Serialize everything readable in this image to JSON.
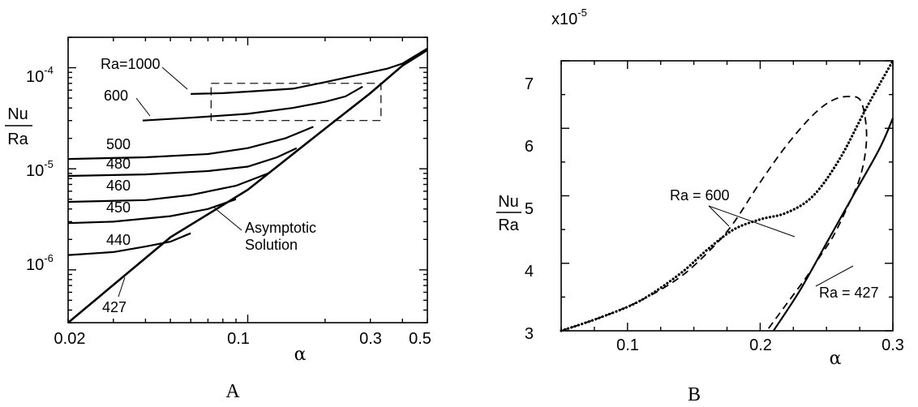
{
  "panels": {
    "A": {
      "label": "A"
    },
    "B": {
      "label": "B"
    }
  },
  "chart_data": [
    {
      "type": "line",
      "panel": "A",
      "xscale": "log",
      "yscale": "log",
      "xlim": [
        0.02,
        0.5
      ],
      "ylim": [
        3e-07,
        0.0002
      ],
      "xlabel": "α",
      "ylabel": {
        "top": "Nu",
        "bottom": "Ra"
      },
      "xticks": [
        {
          "value": 0.02,
          "label": "0.02"
        },
        {
          "value": 0.1,
          "label": "0.1"
        },
        {
          "value": 0.3,
          "label": "0.3"
        },
        {
          "value": 0.5,
          "label": "0.5"
        }
      ],
      "yticks": [
        {
          "value": 1e-06,
          "base": "10",
          "exp": "-6"
        },
        {
          "value": 1e-05,
          "base": "10",
          "exp": "-5"
        },
        {
          "value": 0.0001,
          "base": "10",
          "exp": "-4"
        }
      ],
      "series": [
        {
          "name": "427",
          "style": "asymptotic",
          "x": [
            0.02,
            0.05,
            0.1,
            0.2,
            0.3,
            0.4,
            0.5
          ],
          "y": [
            3e-07,
            2.1e-06,
            6.2e-06,
            2.5e-05,
            5.6e-05,
            0.000105,
            0.00015
          ]
        },
        {
          "name": "440",
          "x": [
            0.02,
            0.03,
            0.04,
            0.05,
            0.06
          ],
          "y": [
            1.4e-06,
            1.5e-06,
            1.7e-06,
            1.9e-06,
            2.3e-06
          ]
        },
        {
          "name": "450",
          "x": [
            0.02,
            0.03,
            0.05,
            0.07,
            0.09
          ],
          "y": [
            2.9e-06,
            3e-06,
            3.4e-06,
            4e-06,
            5e-06
          ]
        },
        {
          "name": "460",
          "x": [
            0.02,
            0.04,
            0.06,
            0.09,
            0.12
          ],
          "y": [
            4.7e-06,
            4.9e-06,
            5.5e-06,
            6.8e-06,
            9e-06
          ]
        },
        {
          "name": "480",
          "x": [
            0.02,
            0.04,
            0.07,
            0.1,
            0.13,
            0.155
          ],
          "y": [
            8.5e-06,
            8.8e-06,
            9.5e-06,
            1.05e-05,
            1.3e-05,
            1.6e-05
          ]
        },
        {
          "name": "500",
          "x": [
            0.02,
            0.04,
            0.07,
            0.1,
            0.14,
            0.18
          ],
          "y": [
            1.25e-05,
            1.3e-05,
            1.4e-05,
            1.6e-05,
            2e-05,
            2.6e-05
          ]
        },
        {
          "name": "600",
          "x": [
            0.039,
            0.06,
            0.1,
            0.15,
            0.2,
            0.24,
            0.28
          ],
          "y": [
            3e-05,
            3.2e-05,
            3.5e-05,
            4e-05,
            4.6e-05,
            5.2e-05,
            6.5e-05
          ]
        },
        {
          "name": "Ra=1000",
          "x": [
            0.06,
            0.08,
            0.1,
            0.15,
            0.2,
            0.3,
            0.35,
            0.4,
            0.5
          ],
          "y": [
            5.5e-05,
            5.6e-05,
            5.8e-05,
            6.2e-05,
            7.2e-05,
            9e-05,
            9.8e-05,
            0.00011,
            0.000155
          ]
        }
      ],
      "inset_box": {
        "x": [
          0.072,
          0.33
        ],
        "y": [
          3e-05,
          7e-05
        ]
      },
      "annotations": [
        {
          "text": "Ra=1000",
          "target": "Ra=1000"
        },
        {
          "text": "600",
          "target": "600"
        },
        {
          "text": "500",
          "target": "500"
        },
        {
          "text": "480",
          "target": "480"
        },
        {
          "text": "460",
          "target": "460"
        },
        {
          "text": "450",
          "target": "450"
        },
        {
          "text": "440",
          "target": "440"
        },
        {
          "text": "Asymptotic",
          "target": "427"
        },
        {
          "text": "Solution",
          "target": "427"
        },
        {
          "text": "427",
          "target": "427"
        }
      ]
    },
    {
      "type": "line",
      "panel": "B",
      "xlim": [
        0.05,
        0.3
      ],
      "ylim": [
        3.0,
        7.0
      ],
      "multiplier": {
        "base": "x10",
        "exp": "-5"
      },
      "xlabel": "α",
      "ylabel": {
        "top": "Nu",
        "bottom": "Ra"
      },
      "xticks": [
        {
          "value": 0.1,
          "label": "0.1"
        },
        {
          "value": 0.2,
          "label": "0.2"
        },
        {
          "value": 0.3,
          "label": "0.3"
        }
      ],
      "yticks": [
        {
          "value": 3,
          "label": "3"
        },
        {
          "value": 4,
          "label": "4"
        },
        {
          "value": 5,
          "label": "5"
        },
        {
          "value": 6,
          "label": "6"
        },
        {
          "value": 7,
          "label": "7"
        }
      ],
      "series": [
        {
          "name": "Ra = 600",
          "style": "dashed",
          "x": [
            0.05,
            0.08,
            0.11,
            0.14,
            0.165,
            0.18,
            0.2,
            0.22,
            0.24,
            0.255,
            0.268,
            0.276,
            0.28,
            0.279,
            0.274,
            0.265,
            0.255,
            0.245,
            0.235,
            0.22,
            0.205
          ],
          "y": [
            3.0,
            3.2,
            3.45,
            3.8,
            4.25,
            4.6,
            5.2,
            5.75,
            6.2,
            6.42,
            6.47,
            6.4,
            6.0,
            5.6,
            5.2,
            4.8,
            4.4,
            4.1,
            3.8,
            3.4,
            3.0
          ]
        },
        {
          "name": "Ra = 600",
          "style": "dotted",
          "x": [
            0.05,
            0.08,
            0.11,
            0.14,
            0.16,
            0.18,
            0.2,
            0.22,
            0.24,
            0.26,
            0.28,
            0.3
          ],
          "y": [
            3.0,
            3.2,
            3.45,
            3.85,
            4.2,
            4.5,
            4.65,
            4.75,
            5.0,
            5.55,
            6.3,
            7.0
          ]
        },
        {
          "name": "Ra = 427",
          "style": "solid",
          "x": [
            0.21,
            0.23,
            0.25,
            0.27,
            0.29,
            0.3
          ],
          "y": [
            3.0,
            3.6,
            4.3,
            5.0,
            5.7,
            6.15
          ]
        }
      ],
      "annotations": [
        {
          "text": "Ra = 600",
          "target": "Ra = 600"
        },
        {
          "text": "Ra = 427",
          "target": "Ra = 427"
        }
      ]
    }
  ]
}
